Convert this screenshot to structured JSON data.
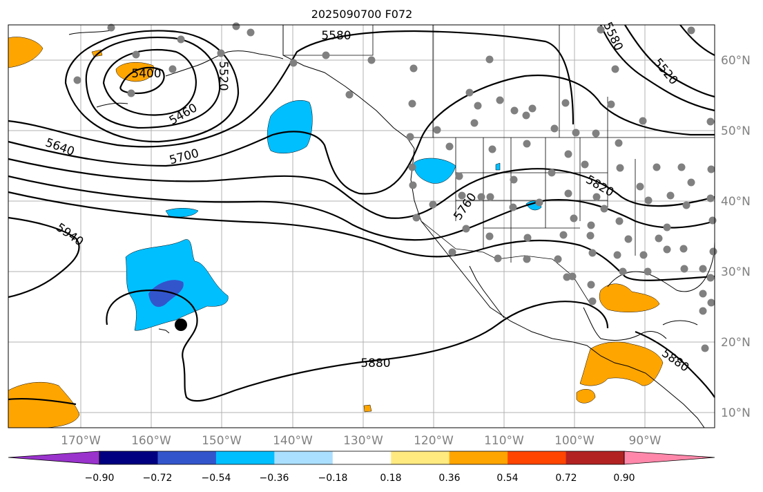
{
  "title": "2025090700 F072",
  "map": {
    "lat_labels": [
      "60°N",
      "50°N",
      "40°N",
      "30°N",
      "20°N",
      "10°N"
    ],
    "lon_labels": [
      "170°W",
      "160°W",
      "150°W",
      "140°W",
      "130°W",
      "120°W",
      "110°W",
      "100°W",
      "90°W"
    ],
    "contour_labels": [
      "5580",
      "5520",
      "5400",
      "5460",
      "5640",
      "5700",
      "5940",
      "5760",
      "5820",
      "5880",
      "5880",
      "5580",
      "5520"
    ],
    "tropical_storm_marker": "black-dot",
    "station_marker": "grey-dot"
  },
  "colorbar": {
    "tick_labels": [
      "−0.90",
      "−0.72",
      "−0.54",
      "−0.36",
      "−0.18",
      "0.18",
      "0.36",
      "0.54",
      "0.72",
      "0.90"
    ],
    "colors": [
      "#9933cc",
      "#000080",
      "#3355cc",
      "#00bfff",
      "#aadfff",
      "#ffffff",
      "#ffea80",
      "#ffa500",
      "#ff4500",
      "#b22222",
      "#ff88aa"
    ]
  },
  "colors": {
    "negative_fill": "#00bfff",
    "negative_strong_fill": "#3355cc",
    "positive_fill": "#ffa500",
    "station": "#808080"
  }
}
